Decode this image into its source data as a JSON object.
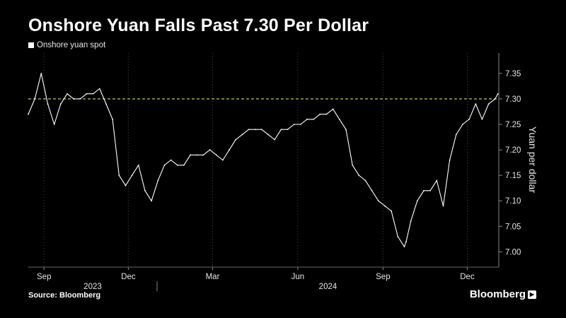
{
  "title": "Onshore Yuan Falls Past 7.30 Per Dollar",
  "legend_label": "Onshore yuan spot",
  "source": "Source: Bloomberg",
  "brand": "Bloomberg",
  "colors": {
    "background": "#000000",
    "series": "#ffffff",
    "reference_line": "#d9d96a",
    "grid": "#444444"
  },
  "chart_data": {
    "type": "line",
    "title": "Onshore Yuan Falls Past 7.30 Per Dollar",
    "ylabel": "Yuan per dollar",
    "ylim": [
      6.97,
      7.39
    ],
    "y_ticks": [
      7.0,
      7.05,
      7.1,
      7.15,
      7.2,
      7.25,
      7.3,
      7.35
    ],
    "x_tick_labels": [
      "Sep",
      "Dec",
      "Mar",
      "Jun",
      "Sep",
      "Dec"
    ],
    "x_year_labels": [
      "2023",
      "2024"
    ],
    "reference_line": 7.3,
    "grid": true,
    "legend_position": "top-left",
    "series": [
      {
        "name": "Onshore yuan spot",
        "x": [
          "2023-08-15",
          "2023-08-22",
          "2023-08-29",
          "2023-09-05",
          "2023-09-12",
          "2023-09-19",
          "2023-09-26",
          "2023-10-03",
          "2023-10-10",
          "2023-10-17",
          "2023-10-24",
          "2023-10-31",
          "2023-11-07",
          "2023-11-14",
          "2023-11-21",
          "2023-11-28",
          "2023-12-05",
          "2023-12-12",
          "2023-12-19",
          "2023-12-26",
          "2024-01-02",
          "2024-01-09",
          "2024-01-16",
          "2024-01-23",
          "2024-01-30",
          "2024-02-06",
          "2024-02-13",
          "2024-02-20",
          "2024-02-27",
          "2024-03-05",
          "2024-03-12",
          "2024-03-19",
          "2024-03-26",
          "2024-04-02",
          "2024-04-09",
          "2024-04-16",
          "2024-04-23",
          "2024-04-30",
          "2024-05-07",
          "2024-05-14",
          "2024-05-21",
          "2024-05-28",
          "2024-06-04",
          "2024-06-11",
          "2024-06-18",
          "2024-06-25",
          "2024-07-02",
          "2024-07-09",
          "2024-07-16",
          "2024-07-23",
          "2024-07-30",
          "2024-08-06",
          "2024-08-13",
          "2024-08-20",
          "2024-08-27",
          "2024-09-03",
          "2024-09-10",
          "2024-09-17",
          "2024-09-24",
          "2024-09-26",
          "2024-10-01",
          "2024-10-08",
          "2024-10-15",
          "2024-10-22",
          "2024-10-29",
          "2024-11-05",
          "2024-11-12",
          "2024-11-19",
          "2024-11-26",
          "2024-12-03",
          "2024-12-10",
          "2024-12-17",
          "2024-12-24",
          "2024-12-31",
          "2025-01-03"
        ],
        "y": [
          7.27,
          7.3,
          7.35,
          7.29,
          7.25,
          7.29,
          7.31,
          7.3,
          7.3,
          7.31,
          7.31,
          7.32,
          7.29,
          7.26,
          7.15,
          7.13,
          7.15,
          7.17,
          7.12,
          7.1,
          7.14,
          7.17,
          7.18,
          7.17,
          7.17,
          7.19,
          7.19,
          7.19,
          7.2,
          7.19,
          7.18,
          7.2,
          7.22,
          7.23,
          7.24,
          7.24,
          7.24,
          7.23,
          7.22,
          7.24,
          7.24,
          7.25,
          7.25,
          7.26,
          7.26,
          7.27,
          7.27,
          7.28,
          7.26,
          7.24,
          7.17,
          7.15,
          7.14,
          7.12,
          7.1,
          7.09,
          7.08,
          7.03,
          7.01,
          7.02,
          7.06,
          7.1,
          7.12,
          7.12,
          7.14,
          7.09,
          7.18,
          7.23,
          7.25,
          7.26,
          7.29,
          7.26,
          7.29,
          7.3,
          7.31
        ]
      }
    ]
  }
}
